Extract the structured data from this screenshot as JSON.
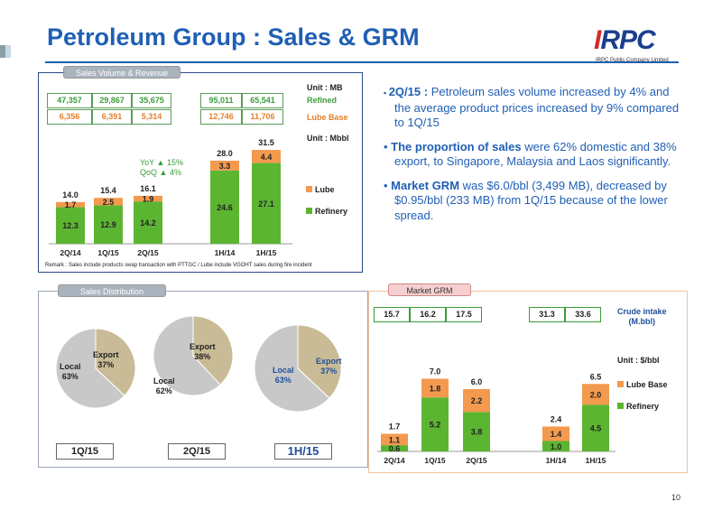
{
  "header": {
    "title": "Petroleum Group : Sales & GRM",
    "logo_text_i": "I",
    "logo_text_rest": "RPC",
    "logo_sub": "IRPC Public Company Limited"
  },
  "sales_volume": {
    "tab": "Sales Volume & Revenue",
    "unit_mb": "Unit : MB",
    "unit_mbbl": "Unit : Mbbl",
    "refined_row": [
      "47,357",
      "29,867",
      "35,675",
      "95,011",
      "65,541"
    ],
    "refined_label": "Refined",
    "lube_row": [
      "6,356",
      "6,391",
      "5,314",
      "12,746",
      "11,706"
    ],
    "lube_label": "Lube Base",
    "yoy_label": "YoY",
    "yoy_value": "15%",
    "qoq_label": "QoQ",
    "qoq_value": "4%",
    "remark": "Remark : Sales include products swap transaction with PTTGC / Lube include VGOHT sales during fire incident"
  },
  "bullets": {
    "b1_head": "2Q/15 :",
    "b1_body": "Petroleum sales volume increased by 4% and the average product prices increased by 9% compared to 1Q/15",
    "b2_head": "The proportion of sales",
    "b2_body": "were 62% domestic and 38% export, to Singapore, Malaysia and Laos significantly.",
    "b3_head": "Market GRM",
    "b3_body": "was $6.0/bbl (3,499 MB), decreased by $0.95/bbl (233 MB) from 1Q/15 because of the lower spread."
  },
  "sales_distribution": {
    "tab": "Sales Distribution",
    "pies": [
      {
        "period": "1Q/15",
        "local": "Local\n63%",
        "export": "Export\n37%"
      },
      {
        "period": "2Q/15",
        "local": "Local\n62%",
        "export": "Export\n38%"
      },
      {
        "period": "1H/15",
        "local": "Local\n63%",
        "export": "Export\n37%"
      }
    ]
  },
  "market_grm": {
    "tab": "Market GRM",
    "crude_row1": [
      "15.7",
      "16.2",
      "17.5"
    ],
    "crude_row2": [
      "31.3",
      "33.6"
    ],
    "crude_label": "Crude intake\n(M.bbl)",
    "unit": "Unit : $/bbl"
  },
  "page_number": "10",
  "colors": {
    "refinery": "#5cb531",
    "lube": "#f39a4f",
    "local_pie": "#c8c8c8",
    "export_pie": "#c9bb96",
    "title_blue": "#1f5fb5"
  },
  "chart_data": [
    {
      "type": "bar",
      "stacked": true,
      "categories": [
        "2Q/14",
        "1Q/15",
        "2Q/15",
        "1H/14",
        "1H/15"
      ],
      "series": [
        {
          "name": "Refinery",
          "values": [
            12.3,
            12.9,
            14.2,
            24.6,
            27.1
          ]
        },
        {
          "name": "Lube",
          "values": [
            1.7,
            2.5,
            1.9,
            3.3,
            4.4
          ]
        }
      ],
      "totals": [
        14.0,
        15.4,
        16.1,
        28.0,
        31.5
      ],
      "legend": "right"
    },
    {
      "type": "pie",
      "pies": [
        {
          "period": "1Q/15",
          "slices": [
            {
              "name": "Local",
              "value": 63
            },
            {
              "name": "Export",
              "value": 37
            }
          ]
        },
        {
          "period": "2Q/15",
          "slices": [
            {
              "name": "Local",
              "value": 62
            },
            {
              "name": "Export",
              "value": 38
            }
          ]
        },
        {
          "period": "1H/15",
          "slices": [
            {
              "name": "Local",
              "value": 63
            },
            {
              "name": "Export",
              "value": 37
            }
          ]
        }
      ]
    },
    {
      "type": "bar",
      "stacked": true,
      "categories": [
        "2Q/14",
        "1Q/15",
        "2Q/15",
        "1H/14",
        "1H/15"
      ],
      "series": [
        {
          "name": "Refinery",
          "values": [
            0.6,
            5.2,
            3.8,
            1.0,
            4.5
          ]
        },
        {
          "name": "Lube Base",
          "values": [
            1.1,
            1.8,
            2.2,
            1.4,
            2.0
          ]
        }
      ],
      "totals": [
        1.7,
        7.0,
        6.0,
        2.4,
        6.5
      ],
      "legend": "right"
    }
  ]
}
